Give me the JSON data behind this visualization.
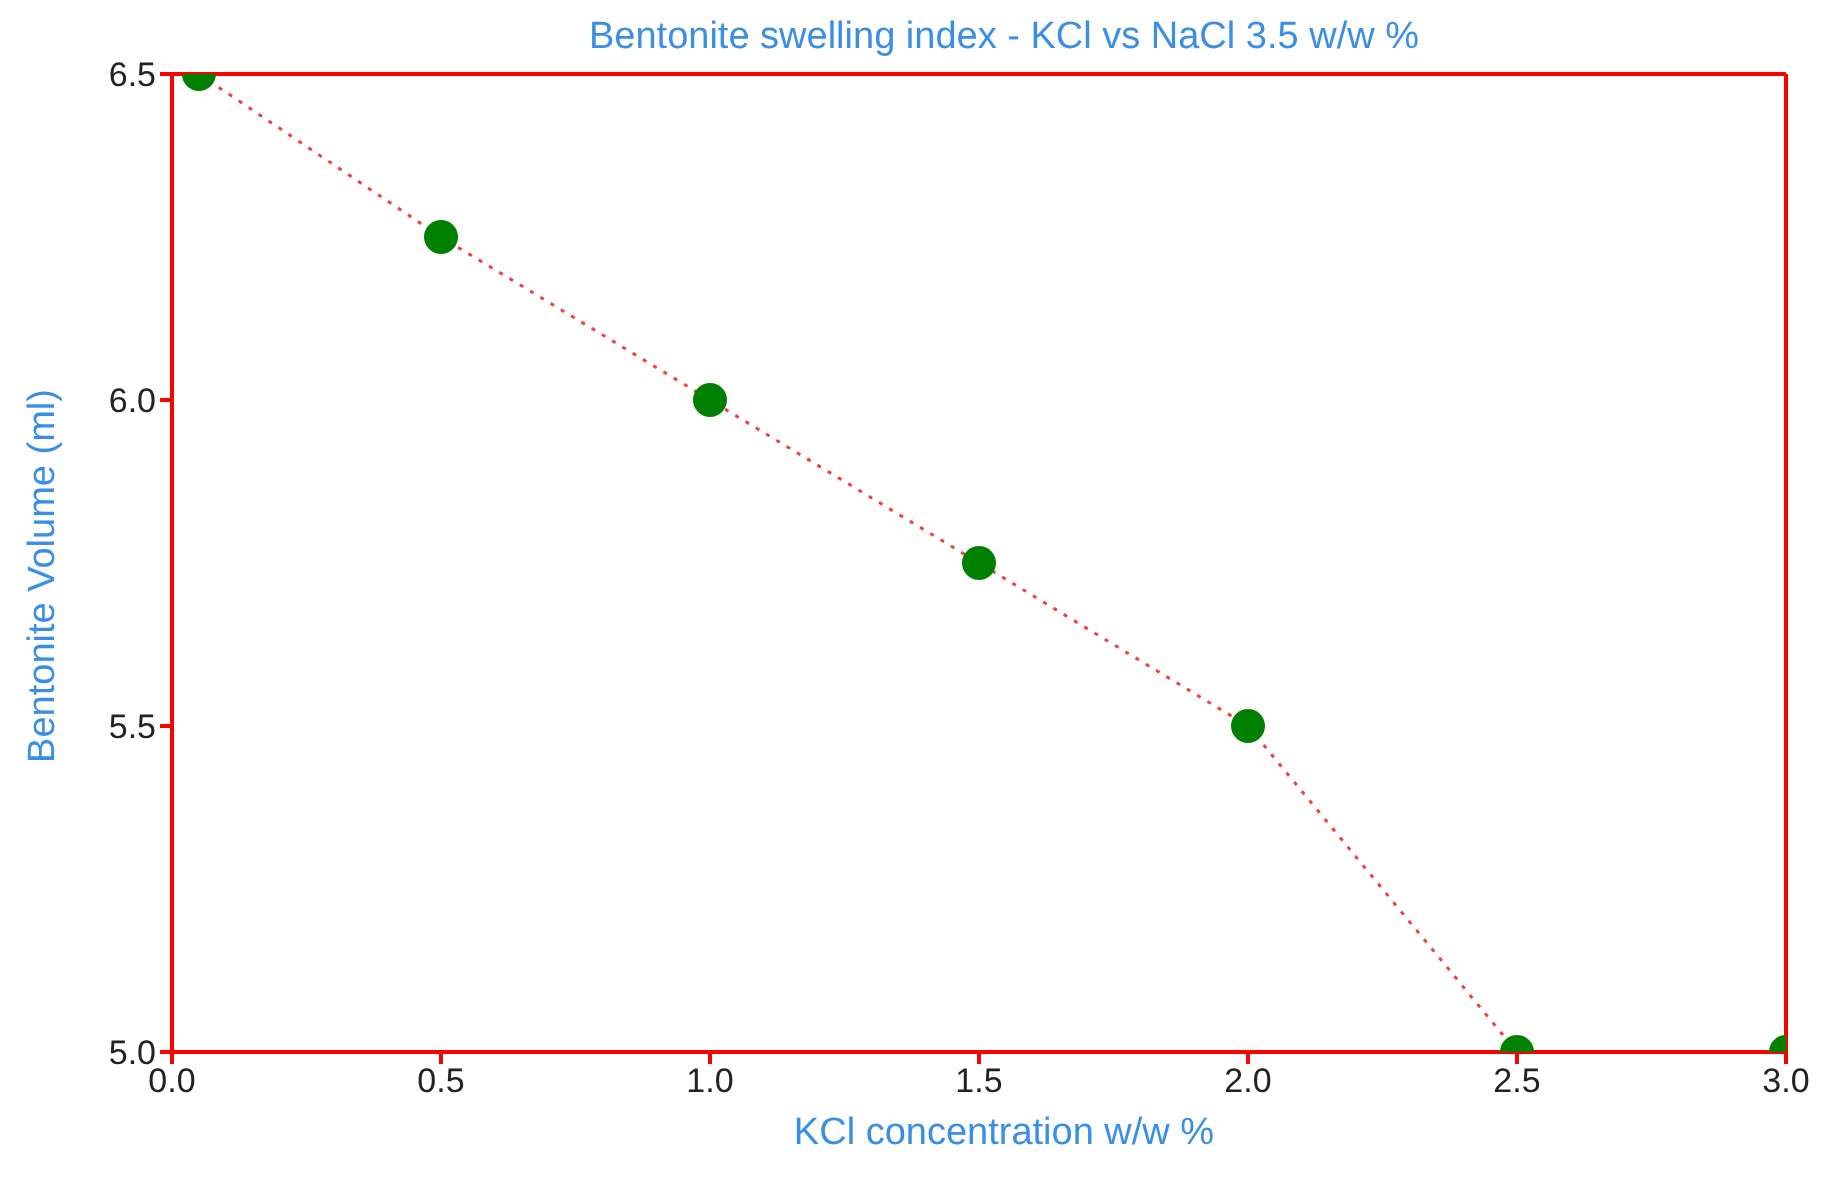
{
  "chart_data": {
    "type": "scatter",
    "title": "Bentonite swelling index - KCl vs NaCl 3.5 w/w %",
    "xlabel": "KCl concentration w/w %",
    "ylabel": "Bentonite Volume (ml)",
    "x": [
      0.05,
      0.5,
      1.0,
      1.5,
      2.0,
      2.5,
      3.0
    ],
    "series": [
      {
        "type": "line",
        "color": "#f04040",
        "line_style": "dotted",
        "marker": "none",
        "values": [
          6.5,
          6.25,
          6.0,
          5.75,
          5.5,
          5.0,
          5.0
        ]
      },
      {
        "color": "#008000",
        "values": [
          6.5,
          6.25,
          6.0,
          5.75,
          5.5,
          5.0,
          5.0
        ]
      }
    ],
    "xlim": [
      0,
      3.0
    ],
    "xticks": [
      {
        "value": 0,
        "label": "0.0"
      },
      0.5,
      {
        "value": 1,
        "label": "1.0"
      },
      1.5,
      {
        "value": 2,
        "label": "2.0"
      },
      2.5,
      {
        "value": 3,
        "label": "3.0"
      }
    ],
    "ylim": [
      5.0,
      6.5
    ],
    "yticks": [
      {
        "value": 5,
        "label": "5.0"
      },
      5.5,
      {
        "value": 6,
        "label": "6.0"
      },
      6.5
    ],
    "grid": false,
    "legend": false,
    "marker": "circle"
  }
}
